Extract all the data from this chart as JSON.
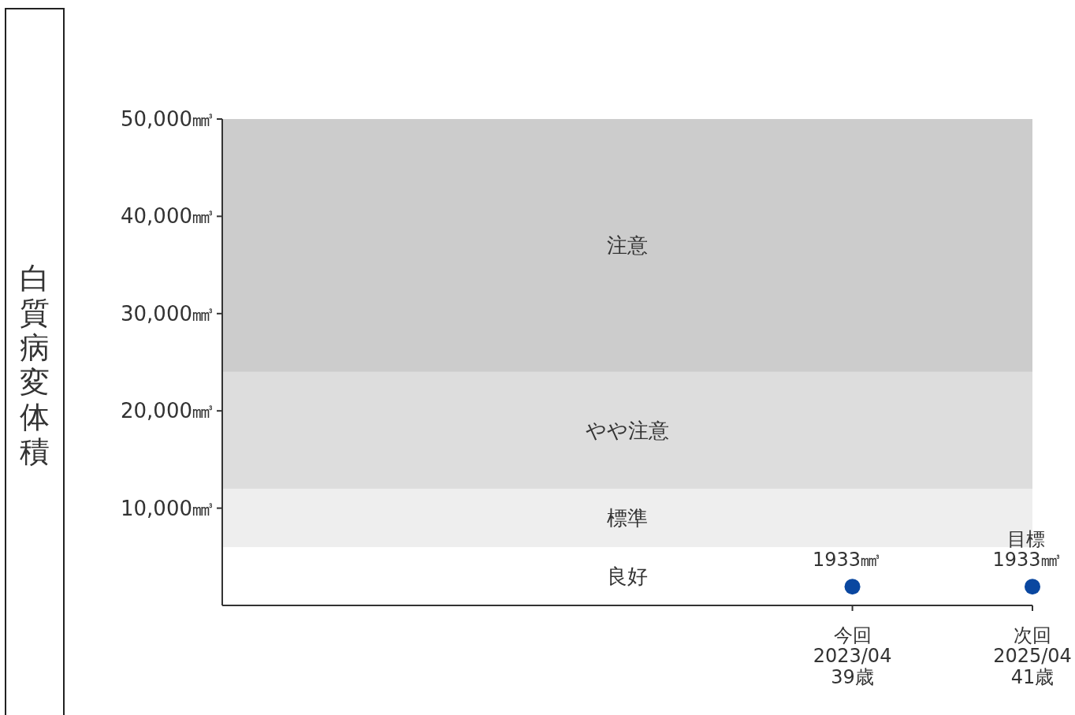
{
  "chart_data": {
    "type": "scatter",
    "ylabel": "白質病変体積",
    "categories": [
      null,
      null,
      null,
      null,
      null,
      null,
      null,
      "今回\n2023/04\n39歳",
      null,
      "次回\n2025/04\n41歳"
    ],
    "values": [
      null,
      null,
      null,
      null,
      null,
      null,
      null,
      1933,
      null,
      1933
    ],
    "value_labels": [
      null,
      null,
      null,
      null,
      null,
      null,
      null,
      "1933㎣",
      null,
      "目標\n1933㎣"
    ],
    "color": "#0a47a0",
    "marker": "circle",
    "ylim": [
      0,
      50000
    ],
    "yticks": [
      {
        "value": 10000,
        "label": "10,000㎣"
      },
      {
        "value": 20000,
        "label": "20,000㎣"
      },
      {
        "value": 30000,
        "label": "30,000㎣"
      },
      {
        "value": 40000,
        "label": "40,000㎣"
      },
      {
        "value": 50000,
        "label": "50,000㎣"
      }
    ],
    "bands": [
      {
        "axis": "y",
        "from": 6000,
        "to": 12000,
        "label": "標準",
        "color": "#eeeeee"
      },
      {
        "axis": "y",
        "from": 12000,
        "to": 24000,
        "label": "やや注意",
        "color": "#dddddd"
      },
      {
        "axis": "y",
        "from": 24000,
        "to": 50000,
        "label": "注意",
        "color": "#cccccc"
      }
    ],
    "annotations": [
      "良好"
    ]
  }
}
